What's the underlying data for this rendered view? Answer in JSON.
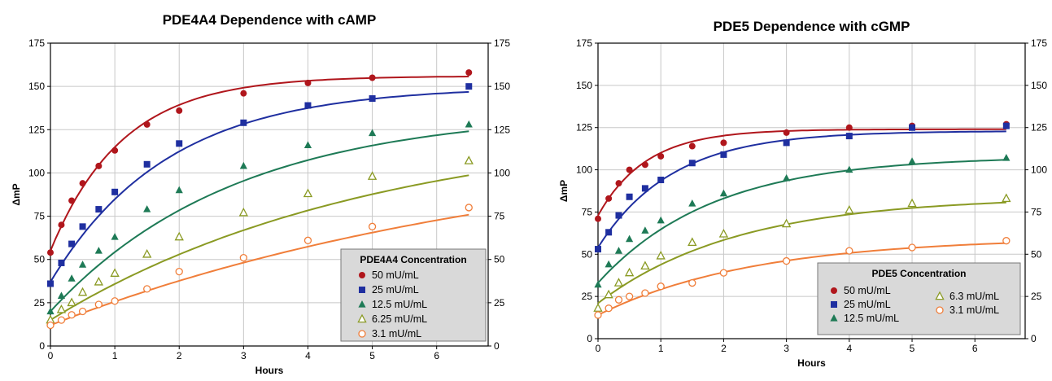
{
  "chart_data": [
    {
      "type": "scatter",
      "title": "PDE4A4 Dependence with cAMP",
      "xlabel": "Hours",
      "ylabel": "ΔmP",
      "xlim": [
        0,
        6.8
      ],
      "ylim": [
        0,
        175
      ],
      "xticks": [
        "0",
        "1",
        "2",
        "3",
        "4",
        "5",
        "6"
      ],
      "yticks": [
        "0",
        "25",
        "50",
        "75",
        "100",
        "125",
        "150",
        "175"
      ],
      "right_axis": true,
      "grid": true,
      "legend": {
        "title": "PDE4A4 Concentration",
        "placement": "bottom-right",
        "columns": 1
      },
      "series": [
        {
          "name": "50 mU/mL",
          "color": "#b0161c",
          "marker": "circle-filled",
          "x": [
            0,
            0.17,
            0.33,
            0.5,
            0.75,
            1,
            1.5,
            2,
            3,
            4,
            5,
            6.5
          ],
          "y": [
            54,
            70,
            84,
            94,
            104,
            113,
            128,
            136,
            146,
            152,
            155,
            158
          ],
          "fit": {
            "y0": 55,
            "ymax": 156,
            "k": 0.9
          }
        },
        {
          "name": "25 mU/mL",
          "color": "#1f2fa0",
          "marker": "square-filled",
          "x": [
            0,
            0.17,
            0.33,
            0.5,
            0.75,
            1,
            1.5,
            2,
            3,
            4,
            5,
            6.5
          ],
          "y": [
            36,
            48,
            59,
            69,
            79,
            89,
            105,
            117,
            129,
            139,
            143,
            150
          ],
          "fit": {
            "y0": 37,
            "ymax": 150,
            "k": 0.55
          }
        },
        {
          "name": "12.5 mU/mL",
          "color": "#1e7a56",
          "marker": "triangle-filled",
          "x": [
            0,
            0.17,
            0.33,
            0.5,
            0.75,
            1,
            1.5,
            2,
            3,
            4,
            5,
            6.5
          ],
          "y": [
            20,
            29,
            39,
            47,
            55,
            63,
            79,
            90,
            104,
            116,
            123,
            128
          ],
          "fit": {
            "y0": 20,
            "ymax": 136,
            "k": 0.35
          }
        },
        {
          "name": "6.25 mU/mL",
          "color": "#8a9a23",
          "marker": "triangle-open",
          "x": [
            0,
            0.17,
            0.33,
            0.5,
            0.75,
            1,
            1.5,
            2,
            3,
            4,
            5,
            6.5
          ],
          "y": [
            15,
            21,
            25,
            31,
            37,
            42,
            53,
            63,
            77,
            88,
            98,
            107
          ],
          "fit": {
            "y0": 15,
            "ymax": 130,
            "k": 0.2
          }
        },
        {
          "name": "3.1 mU/mL",
          "color": "#f07e3a",
          "marker": "circle-open",
          "x": [
            0,
            0.17,
            0.33,
            0.5,
            0.75,
            1,
            1.5,
            2,
            3,
            4,
            5,
            6.5
          ],
          "y": [
            12,
            15,
            18,
            20,
            24,
            26,
            33,
            43,
            51,
            61,
            69,
            80
          ],
          "fit": {
            "y0": 12,
            "ymax": 124,
            "k": 0.13
          }
        }
      ]
    },
    {
      "type": "scatter",
      "title": "PDE5 Dependence with cGMP",
      "xlabel": "Hours",
      "ylabel": "ΔmP",
      "xlim": [
        0,
        6.8
      ],
      "ylim": [
        0,
        175
      ],
      "xticks": [
        "0",
        "1",
        "2",
        "3",
        "4",
        "5",
        "6"
      ],
      "yticks": [
        "0",
        "25",
        "50",
        "75",
        "100",
        "125",
        "150",
        "175"
      ],
      "right_axis": true,
      "grid": true,
      "legend": {
        "title": "PDE5 Concentration",
        "placement": "bottom-right",
        "columns": 2
      },
      "series": [
        {
          "name": "50 mU/mL",
          "color": "#b0161c",
          "marker": "circle-filled",
          "x": [
            0,
            0.17,
            0.33,
            0.5,
            0.75,
            1,
            1.5,
            2,
            3,
            4,
            5,
            6.5
          ],
          "y": [
            71,
            83,
            92,
            100,
            103,
            108,
            114,
            116,
            122,
            125,
            126,
            127
          ],
          "fit": {
            "y0": 73,
            "ymax": 124,
            "k": 1.3
          }
        },
        {
          "name": "25 mU/mL",
          "color": "#1f2fa0",
          "marker": "square-filled",
          "x": [
            0,
            0.17,
            0.33,
            0.5,
            0.75,
            1,
            1.5,
            2,
            3,
            4,
            5,
            6.5
          ],
          "y": [
            53,
            63,
            73,
            84,
            89,
            94,
            104,
            109,
            116,
            120,
            125,
            126
          ],
          "fit": {
            "y0": 54,
            "ymax": 123,
            "k": 0.85
          }
        },
        {
          "name": "12.5 mU/mL",
          "color": "#1e7a56",
          "marker": "triangle-filled",
          "x": [
            0,
            0.17,
            0.33,
            0.5,
            0.75,
            1,
            1.5,
            2,
            3,
            4,
            5,
            6.5
          ],
          "y": [
            32,
            44,
            52,
            59,
            64,
            70,
            80,
            86,
            95,
            100,
            105,
            107
          ],
          "fit": {
            "y0": 33,
            "ymax": 108,
            "k": 0.55
          }
        },
        {
          "name": "6.3 mU/mL",
          "color": "#8a9a23",
          "marker": "triangle-open",
          "x": [
            0,
            0.17,
            0.33,
            0.5,
            0.75,
            1,
            1.5,
            2,
            3,
            4,
            5,
            6.5
          ],
          "y": [
            18,
            26,
            33,
            39,
            43,
            49,
            57,
            62,
            68,
            76,
            80,
            83
          ],
          "fit": {
            "y0": 21,
            "ymax": 84,
            "k": 0.45
          }
        },
        {
          "name": "3.1 mU/mL",
          "color": "#f07e3a",
          "marker": "circle-open",
          "x": [
            0,
            0.17,
            0.33,
            0.5,
            0.75,
            1,
            1.5,
            2,
            3,
            4,
            5,
            6.5
          ],
          "y": [
            14,
            18,
            23,
            25,
            27,
            31,
            33,
            39,
            46,
            52,
            54,
            58
          ],
          "fit": {
            "y0": 14,
            "ymax": 60,
            "k": 0.4
          }
        }
      ]
    }
  ]
}
